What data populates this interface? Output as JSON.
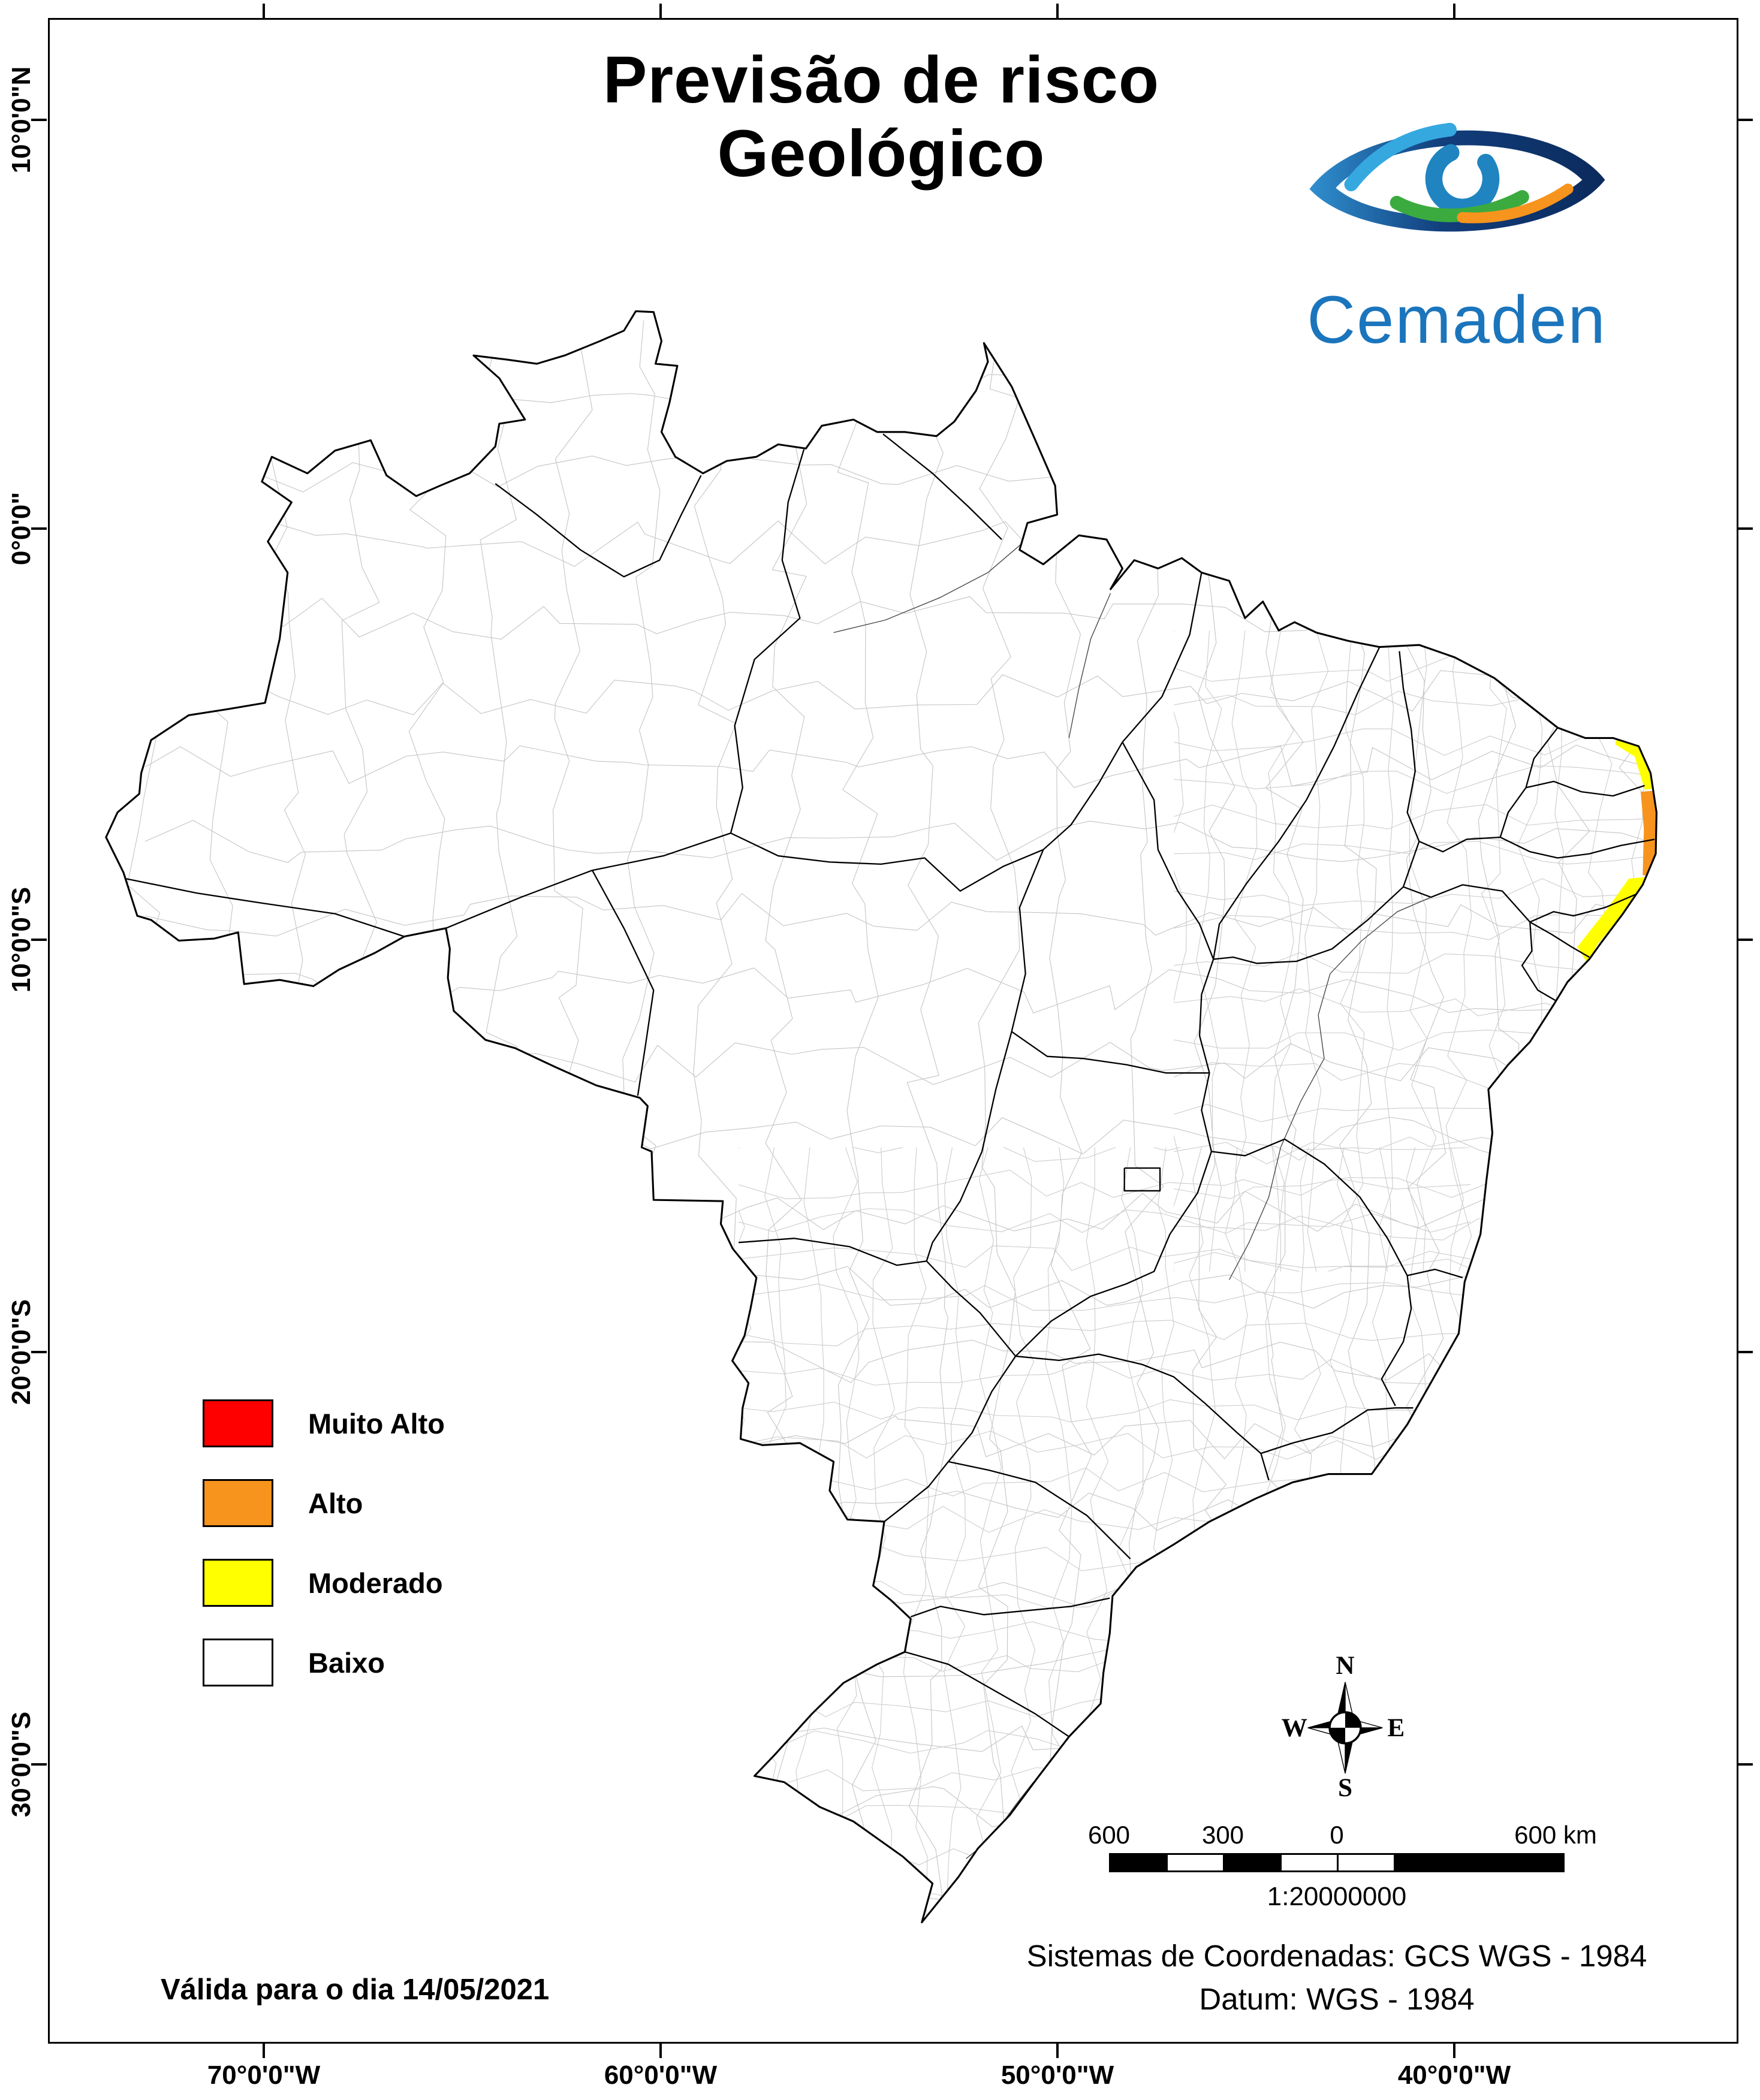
{
  "title": {
    "line1": "Previsão de risco",
    "line2": "Geológico"
  },
  "logo": {
    "wordmark": "Cemaden"
  },
  "legend": {
    "items": [
      {
        "label": "Muito Alto",
        "color": "#FF0000"
      },
      {
        "label": "Alto",
        "color": "#F7941D"
      },
      {
        "label": "Moderado",
        "color": "#FFFF00"
      },
      {
        "label": "Baixo",
        "color": "#FFFFFF"
      }
    ]
  },
  "map": {
    "lat_labels": [
      "10°0'0\"N",
      "0°0'0\"",
      "10°0'0\"S",
      "20°0'0\"S",
      "30°0'0\"S"
    ],
    "lon_labels": [
      "70°0'0\"W",
      "60°0'0\"W",
      "50°0'0\"W",
      "40°0'0\"W"
    ]
  },
  "compass": {
    "n": "N",
    "s": "S",
    "e": "E",
    "w": "W"
  },
  "scalebar": {
    "labels": [
      "600",
      "300",
      "0",
      "600 km"
    ],
    "ratio": "1:20000000"
  },
  "footer": {
    "validity": "Válida para o dia 14/05/2021",
    "coord_system": "Sistemas de Coordenadas: GCS WGS - 1984",
    "datum": "Datum: WGS - 1984"
  },
  "risk_colors": {
    "muito_alto": "#FF0000",
    "alto": "#F7941D",
    "moderado": "#FFFF00",
    "baixo": "#FFFFFF"
  }
}
